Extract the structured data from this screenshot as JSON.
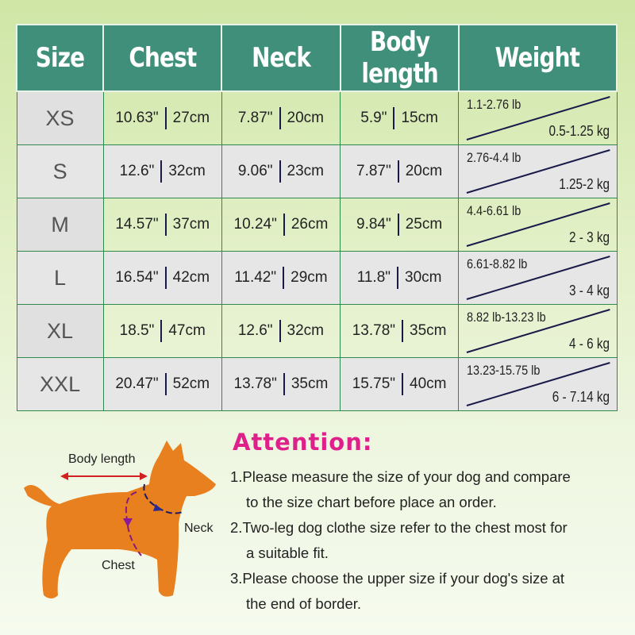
{
  "headers": [
    "Size",
    "Chest",
    "Neck",
    "Body length",
    "Weight"
  ],
  "rows": [
    {
      "size": "XS",
      "chest_in": "10.63\"",
      "chest_cm": "27cm",
      "neck_in": "7.87\"",
      "neck_cm": "20cm",
      "body_in": "5.9\"",
      "body_cm": "15cm",
      "weight_lb": "1.1-2.76 lb",
      "weight_kg": "0.5-1.25 kg"
    },
    {
      "size": "S",
      "chest_in": "12.6\"",
      "chest_cm": "32cm",
      "neck_in": "9.06\"",
      "neck_cm": "23cm",
      "body_in": "7.87\"",
      "body_cm": "20cm",
      "weight_lb": "2.76-4.4 lb",
      "weight_kg": "1.25-2 kg"
    },
    {
      "size": "M",
      "chest_in": "14.57\"",
      "chest_cm": "37cm",
      "neck_in": "10.24\"",
      "neck_cm": "26cm",
      "body_in": "9.84\"",
      "body_cm": "25cm",
      "weight_lb": "4.4-6.61 lb",
      "weight_kg": "2 - 3 kg"
    },
    {
      "size": "L",
      "chest_in": "16.54\"",
      "chest_cm": "42cm",
      "neck_in": "11.42\"",
      "neck_cm": "29cm",
      "body_in": "11.8\"",
      "body_cm": "30cm",
      "weight_lb": "6.61-8.82 lb",
      "weight_kg": "3 - 4 kg"
    },
    {
      "size": "XL",
      "chest_in": "18.5\"",
      "chest_cm": "47cm",
      "neck_in": "12.6\"",
      "neck_cm": "32cm",
      "body_in": "13.78\"",
      "body_cm": "35cm",
      "weight_lb": "8.82 lb-13.23 lb",
      "weight_kg": "4 - 6 kg"
    },
    {
      "size": "XXL",
      "chest_in": "20.47\"",
      "chest_cm": "52cm",
      "neck_in": "13.78\"",
      "neck_cm": "35cm",
      "body_in": "15.75\"",
      "body_cm": "40cm",
      "weight_lb": "13.23-15.75 lb",
      "weight_kg": "6 - 7.14 kg"
    }
  ],
  "diagram": {
    "body_length": "Body length",
    "neck": "Neck",
    "chest": "Chest"
  },
  "attention": {
    "title": "Attention:",
    "lines": [
      "1.Please measure the size of your dog and compare",
      "to the size chart before place an order.",
      "2.Two-leg dog clothe size refer to the chest most for",
      "a suitable fit.",
      "3.Please choose the upper size if your dog's size at",
      "the end of border."
    ]
  },
  "colors": {
    "header": "#3f8f7a",
    "accent": "#e0208a",
    "dog": "#e8801f"
  }
}
